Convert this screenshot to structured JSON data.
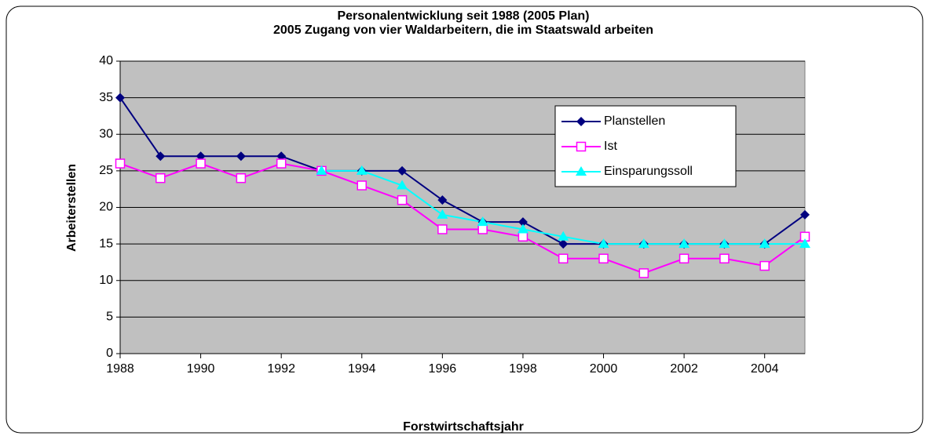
{
  "chart_data": {
    "type": "line",
    "title": "Personalentwicklung seit 1988 (2005 Plan)",
    "subtitle": "2005 Zugang von vier Waldarbeitern, die im Staatswald arbeiten",
    "x_label": "Forstwirtschaftsjahr",
    "y_label": "Arbeiterstellen",
    "x": [
      1988,
      1989,
      1990,
      1991,
      1992,
      1993,
      1994,
      1995,
      1996,
      1997,
      1998,
      1999,
      2000,
      2001,
      2002,
      2003,
      2004,
      2005
    ],
    "series": [
      {
        "name": "Planstellen",
        "color": "#000080",
        "marker": "diamond",
        "values": [
          35,
          27,
          27,
          27,
          27,
          25,
          25,
          25,
          21,
          18,
          18,
          15,
          15,
          15,
          15,
          15,
          15,
          19
        ]
      },
      {
        "name": "Ist",
        "color": "#ff00ff",
        "marker": "square",
        "values": [
          26,
          24,
          26,
          24,
          26,
          25,
          23,
          21,
          17,
          17,
          16,
          13,
          13,
          11,
          13,
          13,
          12,
          16
        ]
      },
      {
        "name": "Einsparungssoll",
        "color": "#00ffff",
        "marker": "triangle",
        "values": [
          null,
          null,
          null,
          null,
          null,
          25,
          25,
          23,
          19,
          18,
          17,
          16,
          15,
          15,
          15,
          15,
          15,
          15
        ]
      }
    ],
    "xlim": [
      1988,
      2005
    ],
    "xticks": [
      1988,
      1990,
      1992,
      1994,
      1996,
      1998,
      2000,
      2002,
      2004
    ],
    "ylim": [
      0,
      40
    ],
    "yticks": [
      0,
      5,
      10,
      15,
      20,
      25,
      30,
      35,
      40
    ],
    "grid": true,
    "legend": "upper right",
    "plot_background": "#c0c0c0"
  }
}
